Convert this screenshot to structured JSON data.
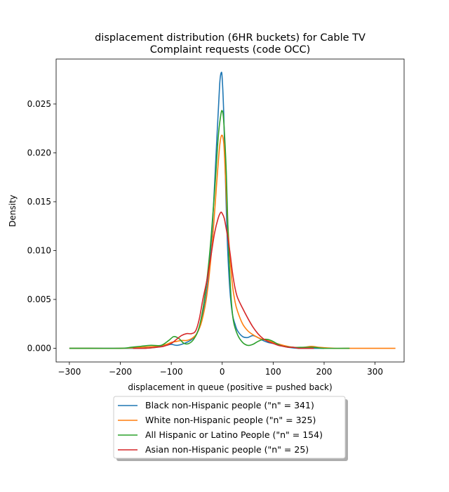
{
  "chart_data": {
    "type": "line",
    "title": "displacement distribution (6HR buckets) for Cable TV\nComplaint requests (code OCC)",
    "xlabel": "displacement in queue (positive = pushed back)",
    "ylabel": "Density",
    "xlim": [
      -326,
      357
    ],
    "ylim": [
      -0.0014,
      0.0296
    ],
    "xticks": [
      -300,
      -200,
      -100,
      0,
      100,
      200,
      300
    ],
    "xtick_labels": [
      "−300",
      "−200",
      "−100",
      "0",
      "100",
      "200",
      "300"
    ],
    "yticks": [
      0.0,
      0.005,
      0.01,
      0.015,
      0.02,
      0.025
    ],
    "ytick_labels": [
      "0.000",
      "0.005",
      "0.010",
      "0.015",
      "0.020",
      "0.025"
    ],
    "grid": false,
    "legend_position": "below-center",
    "series": [
      {
        "name": "Black non-Hispanic people (\"n\" = 341)",
        "color": "#1f77b4",
        "x": [
          -300,
          -200,
          -160,
          -130,
          -110,
          -100,
          -90,
          -80,
          -70,
          -60,
          -50,
          -40,
          -30,
          -20,
          -10,
          -5,
          -2,
          0,
          3,
          6,
          10,
          15,
          20,
          25,
          30,
          40,
          50,
          60,
          70,
          80,
          90,
          100,
          110,
          120,
          130,
          150,
          200
        ],
        "y": [
          0.0,
          0.0,
          0.0,
          0.0001,
          0.0003,
          0.0004,
          0.0003,
          0.0004,
          0.0006,
          0.0009,
          0.0015,
          0.003,
          0.006,
          0.012,
          0.022,
          0.027,
          0.0282,
          0.0276,
          0.024,
          0.018,
          0.011,
          0.006,
          0.0035,
          0.0025,
          0.0018,
          0.0012,
          0.0011,
          0.0013,
          0.0011,
          0.0008,
          0.0006,
          0.0005,
          0.0004,
          0.0002,
          0.0001,
          0.0,
          0.0
        ]
      },
      {
        "name": "White non-Hispanic people (\"n\" = 325)",
        "color": "#ff7f0e",
        "x": [
          -300,
          -200,
          -160,
          -130,
          -110,
          -100,
          -90,
          -80,
          -70,
          -60,
          -50,
          -40,
          -30,
          -20,
          -10,
          -5,
          -1,
          3,
          6,
          10,
          15,
          20,
          25,
          30,
          40,
          50,
          60,
          70,
          80,
          90,
          100,
          120,
          140,
          160,
          175,
          190,
          220,
          260,
          300,
          340
        ],
        "y": [
          0.0,
          0.0,
          0.0001,
          0.0002,
          0.0004,
          0.0006,
          0.0007,
          0.0008,
          0.0008,
          0.001,
          0.0015,
          0.0028,
          0.0055,
          0.0105,
          0.0175,
          0.0207,
          0.0218,
          0.021,
          0.018,
          0.0135,
          0.0095,
          0.0065,
          0.0048,
          0.0038,
          0.0025,
          0.0018,
          0.0014,
          0.0011,
          0.0009,
          0.0008,
          0.0006,
          0.0003,
          0.0001,
          0.0001,
          0.0002,
          0.0001,
          0.0,
          0.0,
          0.0,
          0.0
        ]
      },
      {
        "name": "All Hispanic or Latino People (\"n\" = 154)",
        "color": "#2ca02c",
        "x": [
          -300,
          -200,
          -180,
          -160,
          -140,
          -120,
          -105,
          -95,
          -85,
          -75,
          -65,
          -55,
          -45,
          -35,
          -25,
          -15,
          -8,
          -3,
          0,
          3,
          8,
          12,
          17,
          22,
          30,
          40,
          50,
          60,
          70,
          80,
          90,
          100,
          110,
          120,
          140,
          160,
          180,
          200,
          250
        ],
        "y": [
          0.0,
          0.0,
          0.0001,
          0.0002,
          0.0003,
          0.0003,
          0.0008,
          0.0012,
          0.001,
          0.0005,
          0.0005,
          0.001,
          0.0022,
          0.005,
          0.0095,
          0.016,
          0.0215,
          0.0238,
          0.0243,
          0.0232,
          0.018,
          0.011,
          0.0055,
          0.0028,
          0.0014,
          0.0006,
          0.0003,
          0.0004,
          0.0007,
          0.0009,
          0.0009,
          0.0007,
          0.0004,
          0.0002,
          0.0001,
          0.0001,
          0.0001,
          0.0,
          0.0
        ]
      },
      {
        "name": "Asian non-Hispanic people (\"n\" = 25)",
        "color": "#d62728",
        "x": [
          -175,
          -150,
          -130,
          -115,
          -100,
          -90,
          -80,
          -70,
          -60,
          -52,
          -45,
          -38,
          -30,
          -22,
          -15,
          -8,
          -3,
          0,
          4,
          8,
          12,
          16,
          20,
          25,
          30,
          40,
          50,
          60,
          70,
          80,
          90,
          100,
          110,
          120,
          130,
          140,
          150,
          160,
          170,
          180
        ],
        "y": [
          0.0,
          0.0,
          0.0001,
          0.0002,
          0.0005,
          0.0009,
          0.0013,
          0.0015,
          0.0015,
          0.0018,
          0.003,
          0.005,
          0.007,
          0.0095,
          0.0118,
          0.0133,
          0.0139,
          0.0138,
          0.0133,
          0.0122,
          0.011,
          0.0095,
          0.0078,
          0.0062,
          0.0052,
          0.0041,
          0.0031,
          0.0022,
          0.0015,
          0.001,
          0.0007,
          0.0005,
          0.0003,
          0.0002,
          0.0001,
          0.0001,
          0.0,
          0.0,
          0.0,
          0.0
        ]
      }
    ]
  }
}
